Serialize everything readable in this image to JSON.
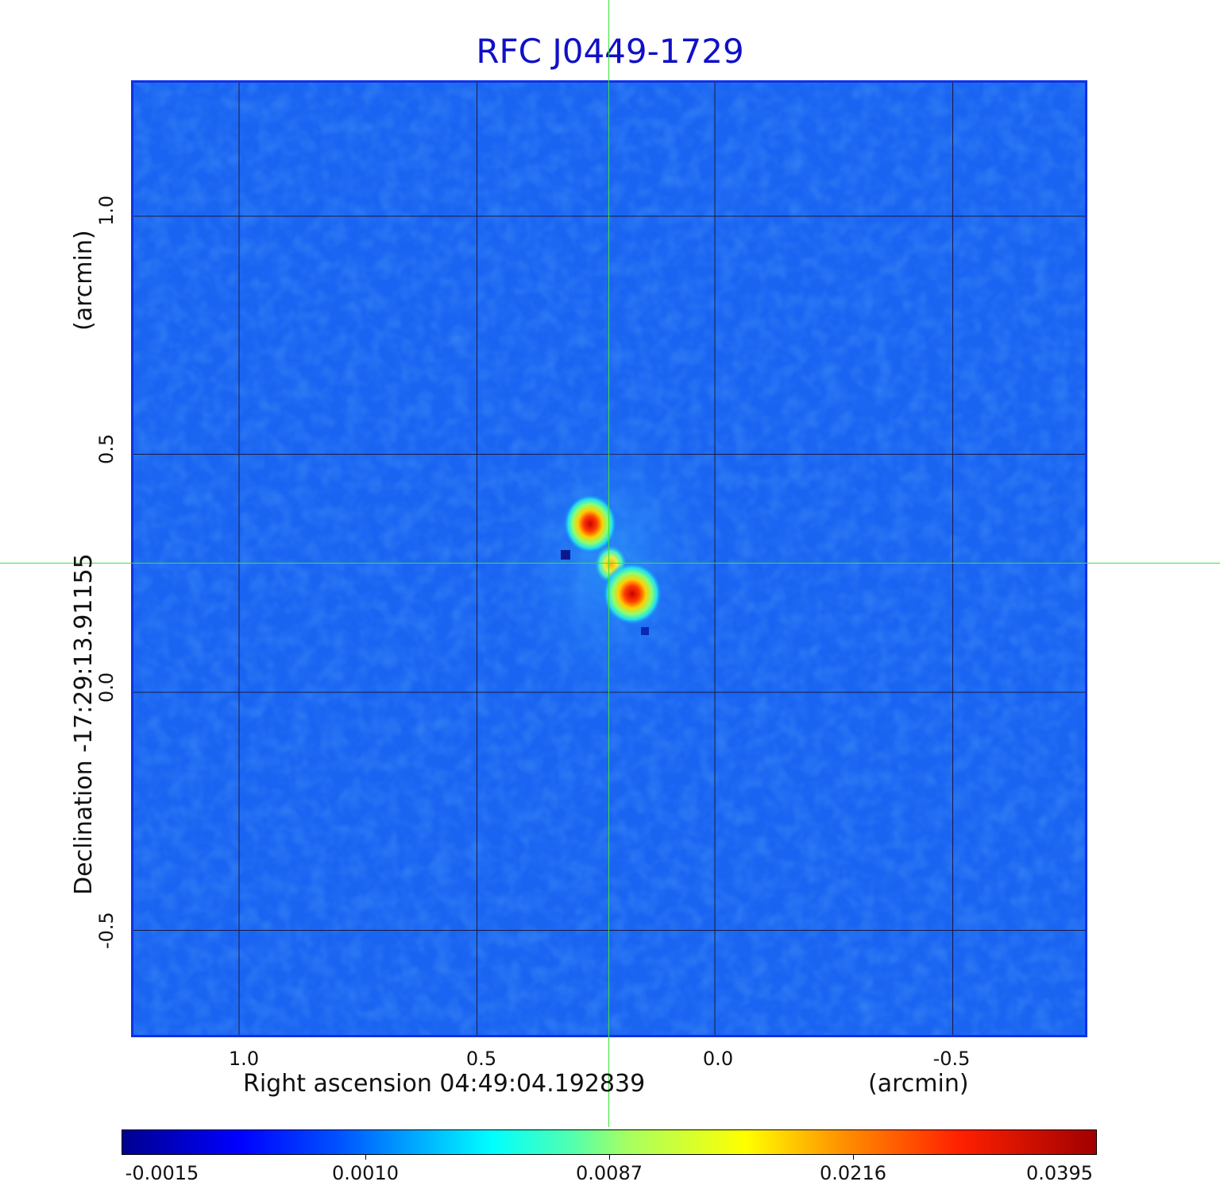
{
  "title": "RFC J0449-1729",
  "x_axis": {
    "label": "Right ascension  04:49:04.192839",
    "unit": "(arcmin)",
    "ticks": [
      {
        "label": "1.0",
        "value": 1.0
      },
      {
        "label": "0.5",
        "value": 0.5
      },
      {
        "label": "0.0",
        "value": 0.0
      },
      {
        "label": "-0.5",
        "value": -0.5
      }
    ]
  },
  "y_axis": {
    "label": "Declination  -17:29:13.91155",
    "unit": "(arcmin)",
    "ticks": [
      {
        "label": "1.0",
        "value": 1.0
      },
      {
        "label": "0.5",
        "value": 0.5
      },
      {
        "label": "0.0",
        "value": 0.0
      },
      {
        "label": "-0.5",
        "value": -0.5
      }
    ]
  },
  "colorbar": {
    "ticks": [
      "-0.0015",
      "0.0010",
      "0.0087",
      "0.0216",
      "0.0395"
    ],
    "colormap": "jet"
  },
  "colors": {
    "title": "#1010c8",
    "frame": "#1030e6",
    "background_map": "#1a64f2",
    "crosshair": "#3ce13c",
    "grid": "#1a1a40"
  }
}
